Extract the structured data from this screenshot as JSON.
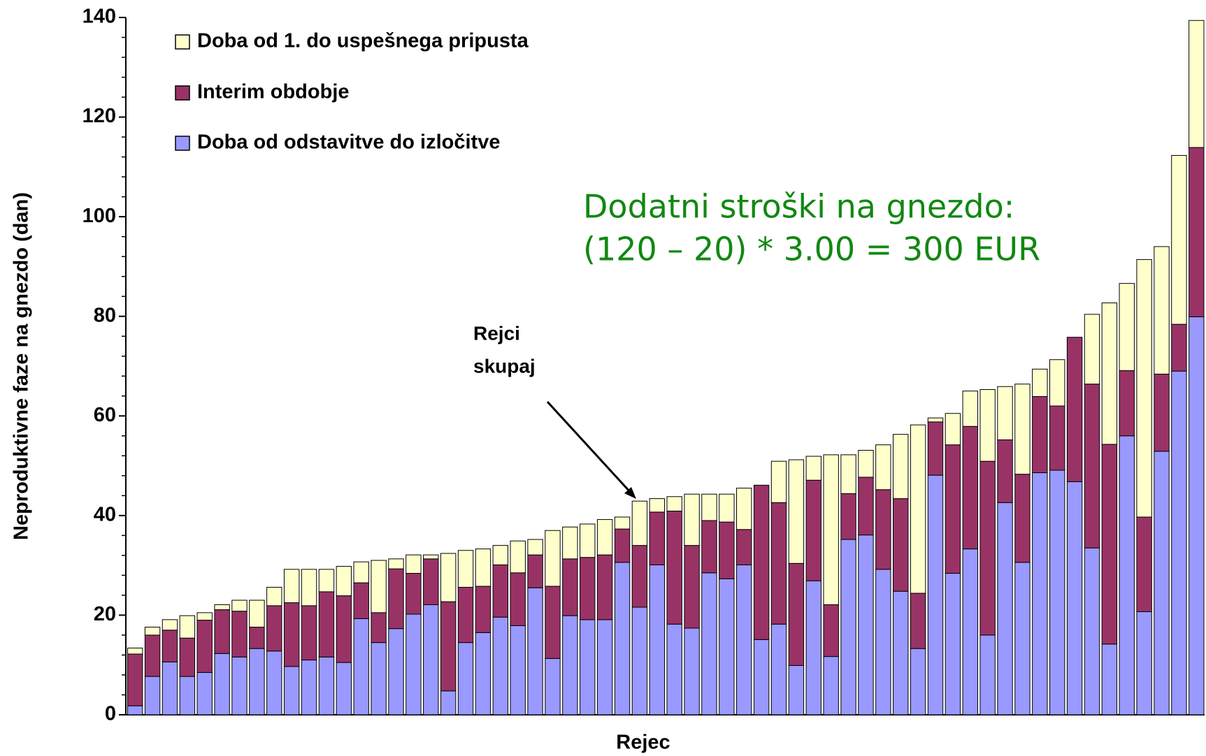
{
  "chart_data": {
    "type": "stacked_bar",
    "xlabel": "Rejec",
    "ylabel": "Neproduktivne faze na gnezdo (dan)",
    "ylim": [
      0,
      140
    ],
    "yticks": [
      0,
      20,
      40,
      60,
      80,
      100,
      120,
      140
    ],
    "legend": "upper left",
    "series": [
      {
        "name": "Doba od odstavitve do izločitve",
        "color": "#9999ff",
        "values": [
          1.8,
          7.7,
          10.6,
          7.7,
          8.5,
          12.3,
          11.6,
          13.3,
          12.8,
          9.7,
          11.0,
          11.6,
          10.5,
          19.3,
          14.5,
          17.3,
          20.2,
          22.1,
          4.8,
          14.5,
          16.5,
          19.6,
          17.9,
          25.5,
          11.3,
          19.9,
          19.1,
          19.1,
          30.6,
          21.6,
          30.1,
          18.2,
          17.4,
          28.5,
          27.3,
          30.1,
          15.1,
          18.2,
          9.9,
          26.9,
          11.7,
          35.2,
          36.1,
          29.2,
          24.8,
          13.3,
          48.1,
          28.4,
          33.3,
          16.0,
          42.6,
          30.6,
          48.6,
          49.1,
          46.8,
          33.5,
          14.2,
          56.0,
          20.7,
          52.9,
          69.0,
          79.9
        ]
      },
      {
        "name": "Interim obdobje",
        "color": "#993366",
        "values": [
          10.4,
          8.3,
          6.4,
          7.7,
          10.5,
          8.8,
          9.2,
          4.3,
          9.1,
          12.8,
          10.9,
          13.1,
          13.4,
          7.2,
          6.0,
          12.0,
          8.2,
          9.2,
          17.9,
          11.1,
          9.3,
          10.5,
          10.6,
          6.6,
          14.5,
          11.4,
          12.5,
          13.0,
          6.7,
          12.4,
          10.6,
          22.7,
          16.6,
          10.5,
          11.4,
          7.1,
          31.0,
          24.4,
          20.5,
          20.2,
          10.4,
          9.2,
          11.6,
          16.0,
          18.6,
          11.1,
          10.7,
          25.8,
          24.6,
          34.9,
          12.6,
          17.7,
          15.3,
          12.9,
          29.0,
          32.9,
          40.1,
          13.1,
          19.0,
          15.5,
          9.4,
          34.0
        ]
      },
      {
        "name": "Doba od 1. do uspešnega pripusta",
        "color": "#ffffcc",
        "values": [
          1.2,
          1.6,
          2.1,
          4.5,
          1.5,
          1.0,
          2.2,
          5.4,
          3.7,
          6.7,
          7.3,
          4.5,
          5.9,
          4.2,
          10.5,
          2.0,
          3.7,
          0.8,
          9.7,
          7.4,
          7.5,
          3.9,
          6.4,
          3.1,
          11.2,
          6.4,
          6.7,
          7.1,
          2.4,
          8.9,
          2.7,
          2.9,
          10.3,
          5.3,
          5.6,
          8.3,
          0,
          8.3,
          20.8,
          4.8,
          30.1,
          7.8,
          5.4,
          9.0,
          12.9,
          33.8,
          0.8,
          6.3,
          7.1,
          14.4,
          10.7,
          18.1,
          5.5,
          9.3,
          0,
          14.0,
          28.4,
          17.5,
          51.7,
          25.6,
          33.9,
          25.5
        ]
      }
    ],
    "annotations": [
      "Dodatni stroški na gnezdo:",
      "(120 – 20) * 3.00 = 300 EUR",
      "Rejci",
      "skupaj"
    ]
  }
}
